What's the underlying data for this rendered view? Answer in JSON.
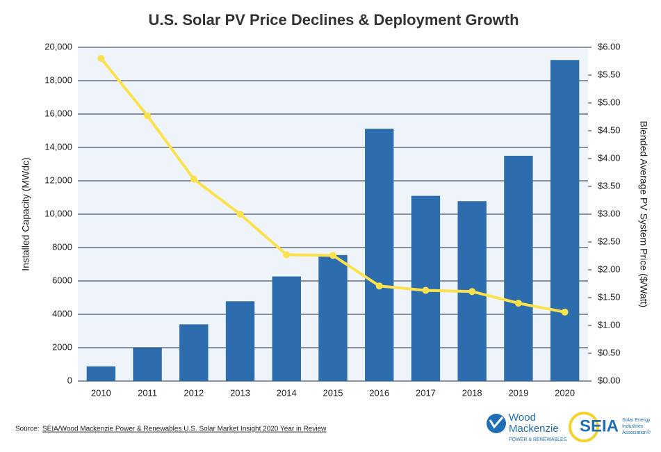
{
  "chart_data": {
    "type": "bar_line",
    "title": "U.S. Solar PV Price Declines & Deployment Growth",
    "y_label": "Installed Capacity (MWdc)",
    "y2_label": "Blended Average PV System Price ($/Watt)",
    "categories": [
      "2010",
      "2011",
      "2012",
      "2013",
      "2014",
      "2015",
      "2016",
      "2017",
      "2018",
      "2019",
      "2020"
    ],
    "series": [
      {
        "name": "Installed Capacity",
        "type": "bar",
        "color": "#2e6dad",
        "values": [
          880,
          1980,
          3400,
          4780,
          6270,
          7550,
          15120,
          11100,
          10780,
          13500,
          19240
        ]
      },
      {
        "name": "Blended Average PV System Price",
        "type": "line",
        "axis": "y2",
        "color": "#fbe24c",
        "values": [
          5.8,
          4.77,
          3.63,
          3.0,
          2.27,
          2.26,
          1.71,
          1.63,
          1.61,
          1.4,
          1.24
        ]
      }
    ],
    "ylim": [
      0,
      20000
    ],
    "yticks": [
      0,
      2000,
      4000,
      6000,
      8000,
      {
        "value": 10000,
        "label": "10,000"
      },
      {
        "value": 12000,
        "label": "12,000"
      },
      {
        "value": 14000,
        "label": "14,000"
      },
      {
        "value": 16000,
        "label": "16,000"
      },
      {
        "value": 18000,
        "label": "18,000"
      },
      {
        "value": 20000,
        "label": "20,000"
      }
    ],
    "y2lim": [
      0,
      6
    ],
    "y2ticks": [
      {
        "value": 0,
        "label": "$0.00"
      },
      {
        "value": 0.5,
        "label": "$0.50"
      },
      {
        "value": 1,
        "label": "$1.00"
      },
      {
        "value": 1.5,
        "label": "$1.50"
      },
      {
        "value": 2,
        "label": "$2.00"
      },
      {
        "value": 2.5,
        "label": "$2.50"
      },
      {
        "value": 3,
        "label": "$3.00"
      },
      {
        "value": 3.5,
        "label": "$3.50"
      },
      {
        "value": 4,
        "label": "$4.00"
      },
      {
        "value": 4.5,
        "label": "$4.50"
      },
      {
        "value": 5,
        "label": "$5.00"
      },
      {
        "value": 5.5,
        "label": "$5.50"
      },
      {
        "value": 6,
        "label": "$6.00"
      }
    ],
    "grid": true
  },
  "footer": {
    "source_prefix": "Source:",
    "source_link": "SEIA/Wood Mackenzie Power & Renewables U.S. Solar Market Insight 2020 Year in Review",
    "logo1_line1": "Wood",
    "logo1_line2": "Mackenzie",
    "logo1_sub": "POWER & RENEWABLES",
    "logo2": "SEIA",
    "logo2_sub1": "Solar Energy",
    "logo2_sub2": "Industries",
    "logo2_sub3": "Association®"
  }
}
